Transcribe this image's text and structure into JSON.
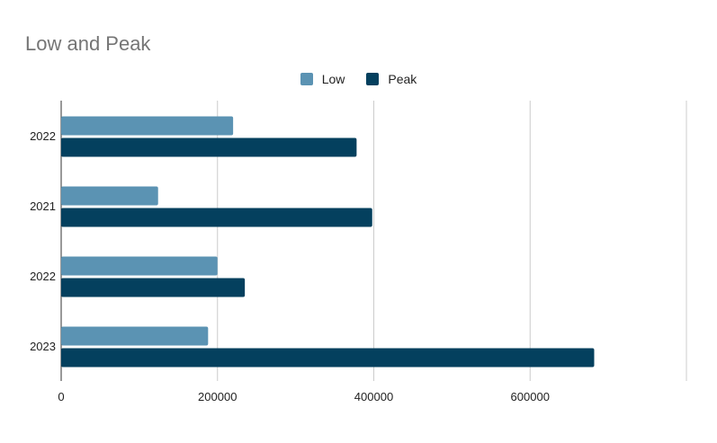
{
  "chart_data": {
    "type": "bar",
    "orientation": "horizontal",
    "title": "Low and Peak",
    "categories": [
      "2022",
      "2021",
      "2022",
      "2023"
    ],
    "series": [
      {
        "name": "Low",
        "color": "#5b93b3",
        "values": [
          220000,
          124000,
          200000,
          188000
        ]
      },
      {
        "name": "Peak",
        "color": "#04405e",
        "values": [
          378000,
          398000,
          235000,
          682000
        ]
      }
    ],
    "xlim": [
      0,
      800000
    ],
    "xticks": [
      "0",
      "200000",
      "400000",
      "600000"
    ],
    "xtick_values": [
      0,
      200000,
      400000,
      600000
    ],
    "grid": true,
    "legend_position": "top"
  }
}
